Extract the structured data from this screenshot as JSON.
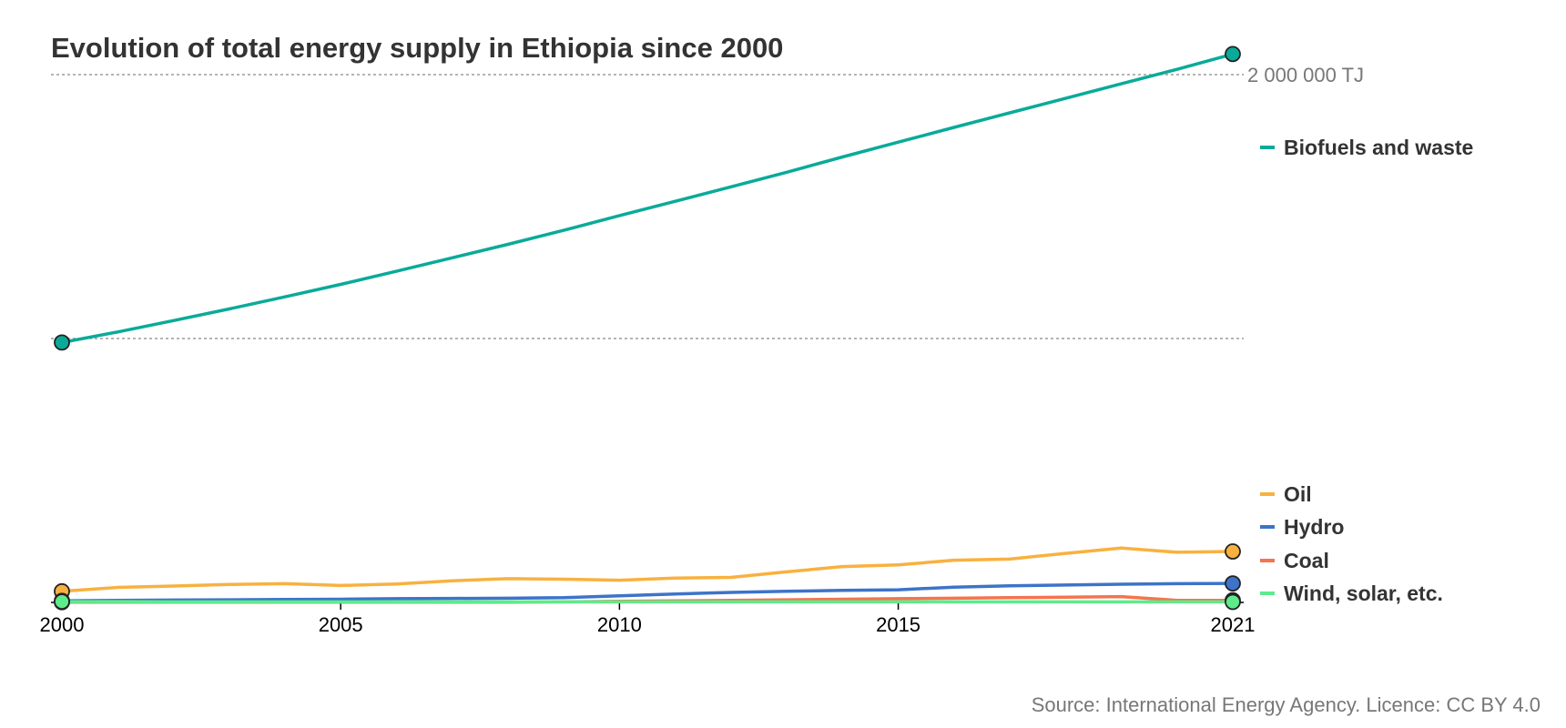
{
  "title": "Evolution of total energy supply in Ethiopia since 2000",
  "source": "Source: International Energy Agency. Licence: CC BY 4.0",
  "colors": {
    "text": "#333333",
    "muted": "#777777",
    "grid": "#888888"
  },
  "chart_data": {
    "type": "line",
    "title": "Evolution of total energy supply in Ethiopia since 2000",
    "x": [
      2000,
      2001,
      2002,
      2003,
      2004,
      2005,
      2006,
      2007,
      2008,
      2009,
      2010,
      2011,
      2012,
      2013,
      2014,
      2015,
      2016,
      2017,
      2018,
      2019,
      2020,
      2021
    ],
    "x_ticks": [
      "2000",
      "2005",
      "2010",
      "2015",
      "2021"
    ],
    "ylim": [
      0,
      2000000
    ],
    "y_unit": "TJ",
    "gridlines": [
      1000000,
      2000000
    ],
    "y_labels": [
      {
        "value": 2000000,
        "text": "2 000 000 TJ"
      }
    ],
    "grid": true,
    "series": [
      {
        "name": "Biofuels and waste",
        "color": "#0aaa99",
        "values": [
          985000,
          1025000,
          1068000,
          1112000,
          1158000,
          1205000,
          1255000,
          1306000,
          1357000,
          1410000,
          1466000,
          1520000,
          1575000,
          1630000,
          1688000,
          1744000,
          1800000,
          1855000,
          1910000,
          1965000,
          2020000,
          2078000
        ]
      },
      {
        "name": "Oil",
        "color": "#f8b13f",
        "values": [
          42000,
          57000,
          62000,
          68000,
          71000,
          64000,
          70000,
          82000,
          90000,
          88000,
          84000,
          92000,
          95000,
          116000,
          136000,
          142000,
          160000,
          164000,
          186000,
          206000,
          190000,
          193000
        ]
      },
      {
        "name": "Hydro",
        "color": "#3d73c9",
        "values": [
          6000,
          8000,
          9000,
          10000,
          11000,
          12000,
          14000,
          15000,
          16000,
          18000,
          25000,
          32000,
          38000,
          42000,
          46000,
          48000,
          58000,
          63000,
          66000,
          69000,
          71000,
          72000
        ]
      },
      {
        "name": "Coal",
        "color": "#f5734f",
        "values": [
          1000,
          1000,
          1000,
          1000,
          1000,
          1000,
          1000,
          1000,
          1000,
          2000,
          4000,
          6000,
          8000,
          10000,
          12000,
          14000,
          16000,
          18000,
          20000,
          22000,
          8000,
          8000
        ]
      },
      {
        "name": "Wind, solar, etc.",
        "color": "#5eeb8c",
        "values": [
          3000,
          3000,
          2000,
          2000,
          2000,
          2000,
          2000,
          2000,
          2000,
          2000,
          2000,
          2000,
          2000,
          2000,
          2000,
          2000,
          2000,
          2000,
          2000,
          2000,
          2000,
          2000
        ]
      }
    ]
  }
}
